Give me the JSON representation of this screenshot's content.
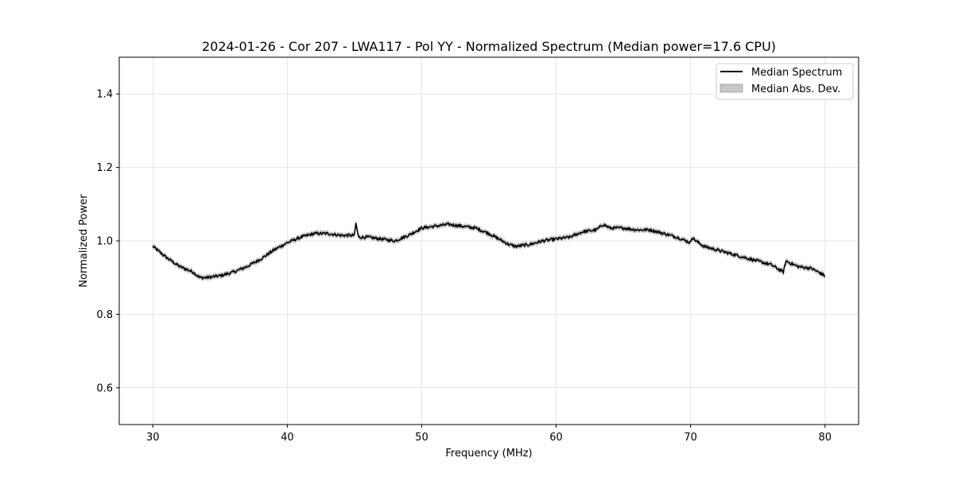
{
  "chart_data": {
    "type": "line",
    "title": "2024-01-26 - Cor 207 - LWA117 - Pol YY - Normalized Spectrum (Median power=17.6 CPU)",
    "xlabel": "Frequency (MHz)",
    "ylabel": "Normalized Power",
    "xlim": [
      27.5,
      82.5
    ],
    "ylim": [
      0.5,
      1.5
    ],
    "xticks": [
      30,
      40,
      50,
      60,
      70,
      80
    ],
    "yticks": [
      0.6,
      0.8,
      1.0,
      1.2,
      1.4
    ],
    "xtick_labels": [
      "30",
      "40",
      "50",
      "60",
      "70",
      "80"
    ],
    "ytick_labels": [
      "0.6",
      "0.8",
      "1.0",
      "1.2",
      "1.4"
    ],
    "grid": true,
    "legend_position": "top-right",
    "series": [
      {
        "name": "Median Spectrum",
        "color": "#000000",
        "x": [
          30,
          31,
          32,
          33,
          33.5,
          34,
          35,
          36,
          37,
          38,
          39,
          40,
          41,
          42,
          43,
          44,
          45,
          45.1,
          45.3,
          46,
          47,
          48,
          49,
          50,
          51,
          52,
          53,
          54,
          55,
          56,
          56.5,
          57,
          58,
          59,
          60,
          61,
          62,
          63,
          63.5,
          64,
          65,
          66,
          67,
          68,
          69,
          70,
          70.1,
          70.4,
          71,
          72,
          73,
          74,
          75,
          76,
          76.9,
          77.1,
          78,
          79,
          80
        ],
        "values": [
          0.985,
          0.955,
          0.93,
          0.915,
          0.9,
          0.9,
          0.905,
          0.915,
          0.93,
          0.95,
          0.975,
          0.995,
          1.01,
          1.02,
          1.02,
          1.015,
          1.015,
          1.048,
          1.01,
          1.01,
          1.005,
          1.0,
          1.015,
          1.035,
          1.04,
          1.045,
          1.04,
          1.035,
          1.02,
          1.0,
          0.99,
          0.985,
          0.99,
          1.0,
          1.005,
          1.01,
          1.025,
          1.03,
          1.045,
          1.035,
          1.035,
          1.03,
          1.03,
          1.02,
          1.01,
          0.995,
          1.01,
          1.0,
          0.985,
          0.975,
          0.965,
          0.955,
          0.945,
          0.935,
          0.915,
          0.945,
          0.93,
          0.925,
          0.905
        ]
      },
      {
        "name": "Median Abs. Dev.",
        "type": "band",
        "color": "#c8c8c8",
        "half_width": 0.006
      }
    ]
  }
}
